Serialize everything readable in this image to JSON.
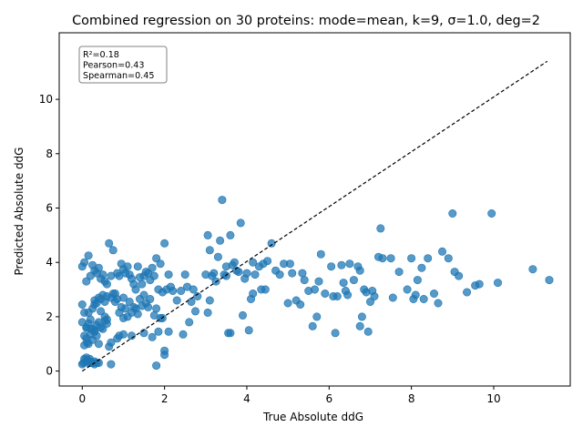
{
  "chart_data": {
    "type": "scatter",
    "title": "Combined regression on 30 proteins: mode=mean, k=9, σ=1.0, deg=2",
    "xlabel": "True Absolute ddG",
    "ylabel": "Predicted Absolute ddG",
    "xlim": [
      -0.56,
      11.86
    ],
    "ylim": [
      -0.55,
      12.45
    ],
    "xticks": [
      0,
      2,
      4,
      6,
      8,
      10
    ],
    "yticks": [
      0,
      2,
      4,
      6,
      8,
      10
    ],
    "grid": false,
    "marker_color": "#1f77b4",
    "reference_line": {
      "style": "dashed",
      "color": "#000000",
      "x": [
        0,
        11.3
      ],
      "y": [
        0,
        11.4
      ]
    },
    "stats": {
      "r2": "R²=0.18",
      "pearson": "Pearson=0.43",
      "spearman": "Spearman=0.45"
    },
    "points": [
      [
        0.0,
        0.25
      ],
      [
        0.03,
        0.3
      ],
      [
        0.05,
        0.45
      ],
      [
        0.08,
        0.35
      ],
      [
        0.1,
        0.5
      ],
      [
        0.12,
        0.4
      ],
      [
        0.15,
        0.3
      ],
      [
        0.18,
        0.45
      ],
      [
        0.2,
        0.35
      ],
      [
        0.25,
        0.3
      ],
      [
        0.3,
        0.25
      ],
      [
        0.35,
        0.3
      ],
      [
        0.05,
        0.95
      ],
      [
        0.1,
        1.2
      ],
      [
        0.15,
        1.0
      ],
      [
        0.2,
        1.35
      ],
      [
        0.25,
        1.15
      ],
      [
        0.3,
        1.5
      ],
      [
        0.35,
        1.3
      ],
      [
        0.4,
        1.0
      ],
      [
        0.1,
        1.6
      ],
      [
        0.15,
        1.75
      ],
      [
        0.2,
        1.9
      ],
      [
        0.25,
        1.55
      ],
      [
        0.3,
        1.45
      ],
      [
        0.35,
        1.7
      ],
      [
        0.4,
        1.8
      ],
      [
        0.45,
        1.6
      ],
      [
        0.5,
        1.55
      ],
      [
        0.55,
        1.85
      ],
      [
        0.6,
        1.75
      ],
      [
        0.0,
        2.45
      ],
      [
        0.05,
        2.15
      ],
      [
        0.15,
        2.15
      ],
      [
        0.25,
        2.3
      ],
      [
        0.3,
        2.6
      ],
      [
        0.35,
        2.5
      ],
      [
        0.4,
        2.7
      ],
      [
        0.45,
        2.65
      ],
      [
        0.5,
        2.8
      ],
      [
        0.55,
        2.55
      ],
      [
        0.6,
        2.75
      ],
      [
        0.0,
        3.85
      ],
      [
        0.05,
        4.0
      ],
      [
        0.1,
        3.3
      ],
      [
        0.15,
        4.25
      ],
      [
        0.2,
        3.5
      ],
      [
        0.25,
        3.9
      ],
      [
        0.3,
        3.7
      ],
      [
        0.35,
        3.6
      ],
      [
        0.4,
        3.8
      ],
      [
        0.45,
        3.4
      ],
      [
        0.5,
        3.55
      ],
      [
        0.55,
        3.3
      ],
      [
        0.6,
        3.2
      ],
      [
        0.65,
        4.7
      ],
      [
        0.7,
        3.5
      ],
      [
        0.75,
        4.45
      ],
      [
        0.8,
        2.85
      ],
      [
        0.85,
        3.6
      ],
      [
        0.9,
        3.5
      ],
      [
        0.95,
        3.95
      ],
      [
        1.0,
        3.75
      ],
      [
        1.05,
        3.6
      ],
      [
        1.1,
        3.85
      ],
      [
        1.15,
        3.55
      ],
      [
        1.2,
        3.4
      ],
      [
        1.25,
        3.2
      ],
      [
        1.3,
        3.0
      ],
      [
        1.35,
        3.85
      ],
      [
        1.4,
        3.45
      ],
      [
        1.45,
        3.2
      ],
      [
        1.5,
        3.5
      ],
      [
        1.55,
        3.65
      ],
      [
        1.6,
        3.6
      ],
      [
        1.65,
        3.35
      ],
      [
        1.7,
        3.8
      ],
      [
        1.75,
        3.5
      ],
      [
        1.8,
        4.15
      ],
      [
        1.85,
        3.0
      ],
      [
        1.9,
        3.95
      ],
      [
        1.95,
        2.9
      ],
      [
        2.0,
        4.7
      ],
      [
        2.05,
        3.0
      ],
      [
        2.1,
        3.55
      ],
      [
        2.15,
        3.1
      ],
      [
        2.2,
        2.95
      ],
      [
        0.7,
        2.7
      ],
      [
        0.75,
        2.85
      ],
      [
        0.8,
        2.55
      ],
      [
        0.85,
        2.65
      ],
      [
        0.9,
        2.15
      ],
      [
        0.95,
        2.35
      ],
      [
        1.0,
        2.7
      ],
      [
        1.05,
        2.3
      ],
      [
        1.1,
        2.0
      ],
      [
        1.15,
        2.55
      ],
      [
        1.2,
        2.15
      ],
      [
        1.25,
        2.35
      ],
      [
        1.3,
        2.3
      ],
      [
        1.35,
        2.1
      ],
      [
        1.4,
        2.65
      ],
      [
        1.45,
        2.4
      ],
      [
        1.5,
        2.8
      ],
      [
        1.55,
        2.5
      ],
      [
        1.6,
        2.35
      ],
      [
        1.65,
        2.65
      ],
      [
        1.7,
        1.25
      ],
      [
        1.75,
        2.05
      ],
      [
        1.8,
        2.3
      ],
      [
        1.85,
        1.45
      ],
      [
        1.9,
        1.95
      ],
      [
        1.95,
        1.95
      ],
      [
        2.0,
        0.75
      ],
      [
        2.0,
        0.6
      ],
      [
        0.65,
        0.9
      ],
      [
        0.7,
        1.05
      ],
      [
        0.85,
        1.2
      ],
      [
        0.9,
        1.3
      ],
      [
        1.0,
        1.35
      ],
      [
        1.2,
        1.3
      ],
      [
        1.5,
        1.4
      ],
      [
        0.7,
        0.25
      ],
      [
        1.8,
        0.2
      ],
      [
        2.1,
        1.45
      ],
      [
        2.3,
        2.6
      ],
      [
        2.4,
        2.95
      ],
      [
        2.45,
        1.35
      ],
      [
        2.5,
        3.55
      ],
      [
        2.55,
        3.1
      ],
      [
        2.6,
        1.8
      ],
      [
        2.65,
        2.55
      ],
      [
        2.7,
        3.0
      ],
      [
        2.75,
        2.2
      ],
      [
        2.8,
        2.75
      ],
      [
        3.0,
        3.55
      ],
      [
        3.05,
        2.15
      ],
      [
        3.1,
        2.6
      ],
      [
        3.15,
        3.5
      ],
      [
        3.2,
        3.6
      ],
      [
        3.25,
        3.3
      ],
      [
        3.3,
        4.2
      ],
      [
        3.35,
        4.8
      ],
      [
        3.4,
        6.3
      ],
      [
        3.45,
        3.55
      ],
      [
        3.5,
        3.85
      ],
      [
        3.55,
        1.4
      ],
      [
        3.6,
        1.4
      ],
      [
        3.65,
        3.9
      ],
      [
        3.7,
        4.0
      ],
      [
        3.8,
        3.65
      ],
      [
        3.85,
        5.45
      ],
      [
        3.9,
        2.05
      ],
      [
        3.95,
        3.4
      ],
      [
        4.0,
        3.6
      ],
      [
        4.05,
        1.5
      ],
      [
        4.1,
        2.65
      ],
      [
        4.15,
        4.0
      ],
      [
        4.2,
        3.55
      ],
      [
        4.3,
        3.85
      ],
      [
        4.35,
        3.0
      ],
      [
        4.4,
        3.95
      ],
      [
        4.5,
        4.05
      ],
      [
        4.6,
        4.7
      ],
      [
        4.7,
        3.7
      ],
      [
        4.8,
        3.55
      ],
      [
        4.9,
        3.95
      ],
      [
        5.0,
        2.5
      ],
      [
        5.05,
        3.95
      ],
      [
        5.1,
        3.6
      ],
      [
        5.2,
        2.6
      ],
      [
        5.3,
        2.45
      ],
      [
        5.35,
        3.6
      ],
      [
        5.4,
        3.35
      ],
      [
        5.5,
        2.95
      ],
      [
        5.6,
        1.65
      ],
      [
        5.65,
        3.0
      ],
      [
        5.7,
        2.0
      ],
      [
        5.75,
        3.3
      ],
      [
        5.8,
        4.3
      ],
      [
        5.9,
        2.85
      ],
      [
        6.05,
        3.85
      ],
      [
        6.15,
        1.4
      ],
      [
        6.2,
        2.75
      ],
      [
        6.3,
        3.9
      ],
      [
        6.35,
        3.25
      ],
      [
        6.4,
        2.95
      ],
      [
        6.45,
        2.8
      ],
      [
        6.5,
        3.95
      ],
      [
        6.6,
        3.35
      ],
      [
        6.7,
        3.85
      ],
      [
        6.75,
        3.7
      ],
      [
        6.8,
        2.0
      ],
      [
        6.85,
        3.0
      ],
      [
        6.9,
        2.9
      ],
      [
        6.95,
        1.45
      ],
      [
        7.0,
        2.55
      ],
      [
        7.05,
        2.95
      ],
      [
        7.1,
        2.75
      ],
      [
        7.2,
        4.2
      ],
      [
        7.25,
        5.25
      ],
      [
        7.3,
        4.15
      ],
      [
        7.5,
        4.15
      ],
      [
        7.55,
        2.7
      ],
      [
        7.7,
        3.65
      ],
      [
        8.0,
        4.15
      ],
      [
        8.05,
        2.65
      ],
      [
        8.1,
        2.8
      ],
      [
        8.15,
        3.35
      ],
      [
        8.25,
        3.8
      ],
      [
        8.3,
        2.65
      ],
      [
        8.4,
        4.15
      ],
      [
        8.55,
        2.85
      ],
      [
        8.65,
        2.5
      ],
      [
        8.75,
        4.4
      ],
      [
        8.9,
        4.15
      ],
      [
        9.0,
        5.8
      ],
      [
        9.05,
        3.65
      ],
      [
        9.15,
        3.5
      ],
      [
        9.35,
        2.9
      ],
      [
        9.55,
        3.15
      ],
      [
        9.65,
        3.2
      ],
      [
        9.95,
        5.8
      ],
      [
        10.1,
        3.25
      ],
      [
        10.95,
        3.75
      ],
      [
        11.35,
        3.35
      ],
      [
        0.1,
        1.6
      ],
      [
        0.2,
        1.55
      ],
      [
        0.3,
        2.45
      ],
      [
        0.45,
        2.2
      ],
      [
        0.55,
        2.0
      ],
      [
        0.6,
        1.9
      ],
      [
        0.0,
        1.8
      ],
      [
        0.05,
        1.3
      ],
      [
        0.12,
        1.05
      ],
      [
        0.22,
        0.3
      ],
      [
        0.3,
        0.35
      ],
      [
        0.4,
        0.3
      ],
      [
        6.75,
        1.65
      ],
      [
        6.1,
        2.75
      ],
      [
        7.9,
        3.0
      ],
      [
        4.15,
        2.85
      ],
      [
        3.1,
        4.45
      ],
      [
        3.05,
        5.0
      ],
      [
        3.6,
        5.0
      ],
      [
        3.5,
        3.5
      ],
      [
        3.75,
        3.7
      ],
      [
        4.45,
        3.0
      ],
      [
        1.0,
        1.95
      ]
    ]
  }
}
